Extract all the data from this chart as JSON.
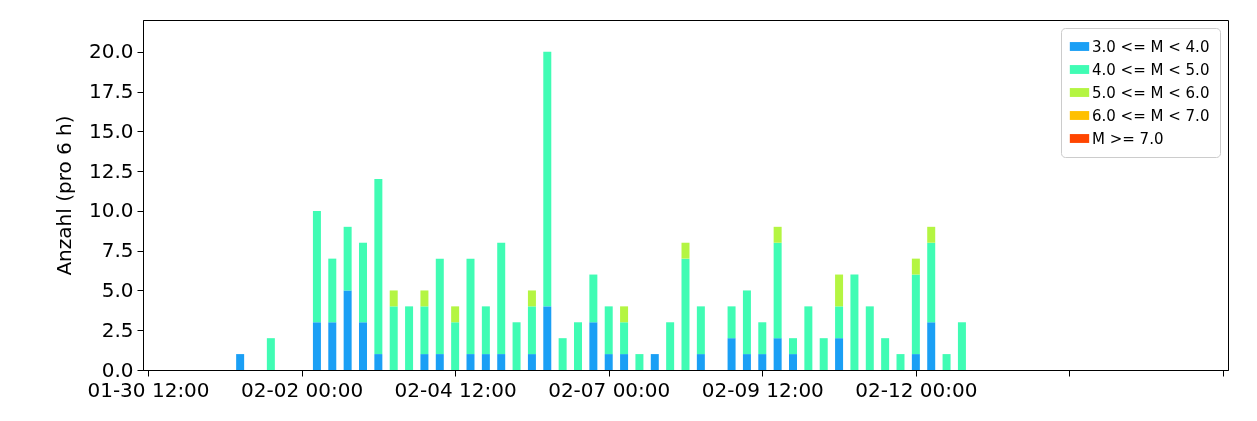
{
  "chart_data": {
    "type": "bar",
    "stacked": true,
    "ylabel": "Anzahl (pro 6 h)",
    "x": [
      "--02-01T00:00",
      "--02-01T12:00",
      "--02-02T06:00",
      "--02-02T12:00",
      "--02-02T18:00",
      "--02-03T00:00",
      "--02-03T06:00",
      "--02-03T12:00",
      "--02-03T18:00",
      "--02-04T00:00",
      "--02-04T06:00",
      "--02-04T12:00",
      "--02-04T18:00",
      "--02-05T00:00",
      "--02-05T06:00",
      "--02-05T12:00",
      "--02-05T18:00",
      "--02-06T00:00",
      "--02-06T06:00",
      "--02-06T12:00",
      "--02-06T18:00",
      "--02-07T00:00",
      "--02-07T06:00",
      "--02-07T12:00",
      "--02-07T18:00",
      "--02-08T00:00",
      "--02-08T06:00",
      "--02-08T12:00",
      "--02-09T00:00",
      "--02-09T06:00",
      "--02-09T12:00",
      "--02-09T18:00",
      "--02-10T00:00",
      "--02-10T06:00",
      "--02-10T12:00",
      "--02-10T18:00",
      "--02-11T00:00",
      "--02-11T06:00",
      "--02-11T12:00",
      "--02-11T18:00",
      "--02-12T00:00",
      "--02-12T06:00",
      "--02-12T12:00",
      "--02-12T18:00"
    ],
    "series": [
      {
        "name": "3.0 <= M < 4.0",
        "color": "#1a9ff5",
        "values": [
          1,
          null,
          3,
          3,
          5,
          3,
          1,
          null,
          null,
          1,
          1,
          null,
          1,
          1,
          1,
          null,
          1,
          4,
          null,
          null,
          3,
          1,
          1,
          null,
          1,
          null,
          null,
          1,
          2,
          1,
          1,
          2,
          1,
          null,
          null,
          2,
          null,
          null,
          null,
          null,
          1,
          3,
          null,
          null
        ]
      },
      {
        "name": "4.0 <= M < 5.0",
        "color": "#40fcb4",
        "values": [
          null,
          2,
          7,
          4,
          4,
          5,
          11,
          4,
          4,
          3,
          6,
          3,
          6,
          3,
          7,
          3,
          3,
          16,
          2,
          3,
          3,
          3,
          2,
          1,
          null,
          3,
          7,
          3,
          2,
          4,
          2,
          6,
          1,
          4,
          2,
          2,
          6,
          4,
          2,
          1,
          5,
          5,
          1,
          3
        ]
      },
      {
        "name": "5.0 <= M < 6.0",
        "color": "#b4f542",
        "values": [
          null,
          null,
          null,
          null,
          null,
          null,
          null,
          1,
          null,
          1,
          null,
          1,
          null,
          null,
          null,
          null,
          1,
          null,
          null,
          null,
          null,
          null,
          1,
          null,
          null,
          null,
          1,
          null,
          null,
          null,
          null,
          1,
          null,
          null,
          null,
          2,
          null,
          null,
          null,
          null,
          1,
          1,
          null,
          null
        ]
      },
      {
        "name": "6.0 <= M < 7.0",
        "color": "#ffc000",
        "values": [
          null,
          null,
          null,
          null,
          null,
          null,
          null,
          null,
          null,
          null,
          null,
          null,
          null,
          null,
          null,
          null,
          null,
          null,
          null,
          null,
          null,
          null,
          null,
          null,
          null,
          null,
          null,
          null,
          null,
          null,
          null,
          null,
          null,
          null,
          null,
          null,
          null,
          null,
          null,
          null,
          null,
          null,
          null,
          null
        ]
      },
      {
        "name": "M >= 7.0",
        "color": "#ff4500",
        "values": [
          null,
          null,
          null,
          null,
          null,
          null,
          null,
          null,
          null,
          null,
          null,
          null,
          null,
          null,
          null,
          null,
          null,
          null,
          null,
          null,
          null,
          null,
          null,
          null,
          null,
          null,
          null,
          null,
          null,
          null,
          null,
          null,
          null,
          null,
          null,
          null,
          null,
          null,
          null,
          null,
          null,
          null,
          null,
          null
        ]
      }
    ],
    "xlim": [
      "--01-30T12:00",
      "--02-17T00:00"
    ],
    "xticks": [
      {
        "value": "--01-30T12:00",
        "label": "01-30 12:00"
      },
      {
        "value": "--02-02T00:00",
        "label": "02-02 00:00"
      },
      {
        "value": "--02-04T12:00",
        "label": "02-04 12:00"
      },
      {
        "value": "--02-07T00:00",
        "label": "02-07 00:00"
      },
      {
        "value": "--02-09T12:00",
        "label": "02-09 12:00"
      },
      {
        "value": "--02-12T00:00",
        "label": "02-12 00:00"
      },
      {
        "value": "--02-14T12:00",
        "label": null
      },
      {
        "value": "--02-17T00:00",
        "label": null
      }
    ],
    "ylim": [
      0,
      22
    ],
    "yticks": [
      {
        "value": 0,
        "label": "0.0"
      },
      {
        "value": 2.5,
        "label": "2.5"
      },
      {
        "value": 5,
        "label": "5.0"
      },
      {
        "value": 7.5,
        "label": "7.5"
      },
      {
        "value": 10,
        "label": "10.0"
      },
      {
        "value": 12.5,
        "label": "12.5"
      },
      {
        "value": 15,
        "label": "15.0"
      },
      {
        "value": 17.5,
        "label": "17.5"
      },
      {
        "value": 20,
        "label": "20.0"
      }
    ],
    "grid": false,
    "legend": "top right"
  }
}
